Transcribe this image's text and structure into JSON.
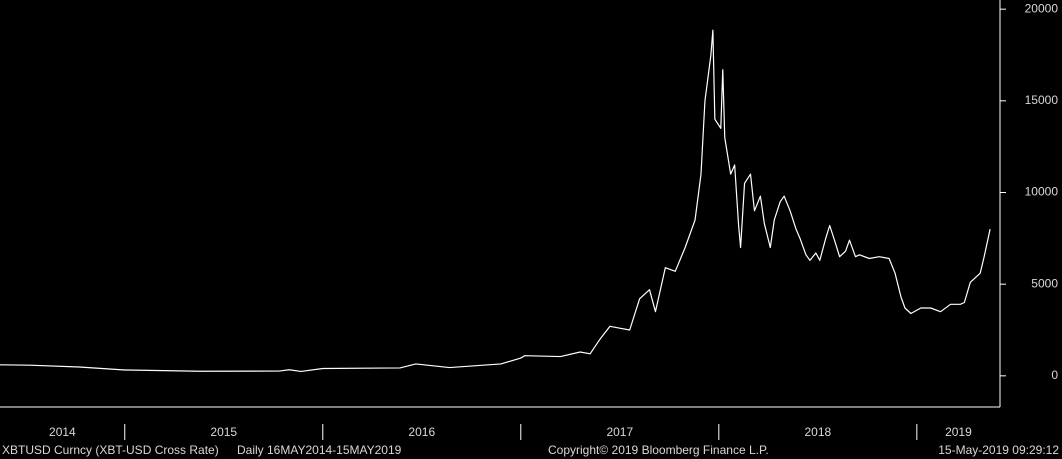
{
  "chart_data": {
    "type": "line",
    "title": "XBTUSD Curncy (XBT-USD Cross Rate)",
    "subtitle": "Daily 16MAY2014-15MAY2019",
    "source": "Copyright© 2019 Bloomberg Finance L.P.",
    "timestamp": "15-May-2019 09:29:12",
    "xlim": [
      2014.37,
      2019.42
    ],
    "ylim": [
      -1700,
      20500
    ],
    "xticks": [
      {
        "value": 2014,
        "label": "2014"
      },
      {
        "value": 2015,
        "label": "2015"
      },
      {
        "value": 2016,
        "label": "2016"
      },
      {
        "value": 2017,
        "label": "2017"
      },
      {
        "value": 2018,
        "label": "2018"
      },
      {
        "value": 2019,
        "label": "2019"
      }
    ],
    "yticks": [
      0,
      5000,
      10000,
      15000,
      20000
    ],
    "series": [
      {
        "color": "#ffffff",
        "x": [
          2014.37,
          2014.52,
          2014.77,
          2015.0,
          2015.38,
          2015.78,
          2015.83,
          2015.89,
          2016.0,
          2016.39,
          2016.47,
          2016.64,
          2016.9,
          2017.0,
          2017.02,
          2017.2,
          2017.3,
          2017.35,
          2017.4,
          2017.45,
          2017.5,
          2017.55,
          2017.6,
          2017.65,
          2017.68,
          2017.73,
          2017.78,
          2017.83,
          2017.88,
          2017.91,
          2017.93,
          2017.96,
          2017.97,
          2017.98,
          2018.01,
          2018.02,
          2018.03,
          2018.06,
          2018.08,
          2018.1,
          2018.11,
          2018.13,
          2018.16,
          2018.18,
          2018.21,
          2018.23,
          2018.26,
          2018.28,
          2018.31,
          2018.33,
          2018.36,
          2018.39,
          2018.41,
          2018.44,
          2018.46,
          2018.49,
          2018.51,
          2018.54,
          2018.56,
          2018.59,
          2018.61,
          2018.64,
          2018.66,
          2018.69,
          2018.71,
          2018.76,
          2018.81,
          2018.86,
          2018.89,
          2018.92,
          2018.94,
          2018.97,
          2019.02,
          2019.07,
          2019.12,
          2019.17,
          2019.22,
          2019.24,
          2019.27,
          2019.29,
          2019.32,
          2019.34,
          2019.37
        ],
        "values": [
          600,
          580,
          480,
          320,
          250,
          260,
          330,
          240,
          400,
          430,
          650,
          450,
          650,
          970,
          1100,
          1050,
          1300,
          1200,
          2000,
          2700,
          2600,
          2500,
          4200,
          4700,
          3500,
          5900,
          5700,
          7000,
          8500,
          11000,
          15000,
          17500,
          18850,
          14000,
          13500,
          16700,
          13000,
          11000,
          11500,
          8200,
          7000,
          10500,
          11000,
          9000,
          9800,
          8300,
          7000,
          8500,
          9500,
          9800,
          9000,
          8000,
          7500,
          6600,
          6300,
          6700,
          6300,
          7500,
          8200,
          7200,
          6500,
          6800,
          7400,
          6500,
          6600,
          6400,
          6500,
          6400,
          5600,
          4300,
          3700,
          3400,
          3700,
          3700,
          3500,
          3900,
          3900,
          4000,
          5100,
          5300,
          5600,
          6500,
          8000
        ]
      }
    ]
  }
}
